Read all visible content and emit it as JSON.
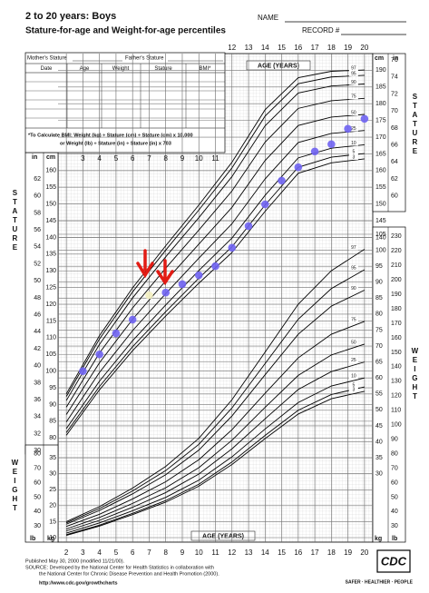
{
  "header": {
    "title": "2 to 20 years: Boys",
    "subtitle": "Stature-for-age and Weight-for-age percentiles",
    "name_label": "NAME",
    "record_label": "RECORD #"
  },
  "record_table": {
    "mother": "Mother's Stature",
    "father": "Father's Stature",
    "columns": [
      "Date",
      "Age",
      "Weight",
      "Stature",
      "BMI*"
    ],
    "bmi_note1": "*To Calculate BMI: Weight (kg) ÷ Stature (cm) ÷ Stature (cm) x 10,000",
    "bmi_note2": "or Weight (lb) ÷ Stature (in) ÷ Stature (in) x 703"
  },
  "footer": {
    "published": "Published May 30, 2000 (modified 11/21/00).",
    "source": "SOURCE: Developed by the National Center for Health Statistics in collaboration with",
    "source2": "the National Center for Chronic Disease Prevention and Health Promotion (2000).",
    "url": "http://www.cdc.gov/growthcharts",
    "logo": "CDC",
    "tagline": "SAFER · HEALTHIER · PEOPLE"
  },
  "chart_data": {
    "type": "line",
    "x_label": "AGE (YEARS)",
    "stature_label": "STATURE",
    "weight_label": "WEIGHT",
    "unit_cm": "cm",
    "unit_in": "in",
    "unit_kg": "kg",
    "unit_lb": "lb",
    "x": [
      2,
      4,
      6,
      8,
      10,
      12,
      14,
      16,
      18,
      20
    ],
    "xlim": [
      1.5,
      20.5
    ],
    "xticks": [
      2,
      3,
      4,
      5,
      6,
      7,
      8,
      9,
      10,
      11,
      12,
      13,
      14,
      15,
      16,
      17,
      18,
      19,
      20
    ],
    "ylim": [
      76,
      195
    ],
    "yticks": [
      80,
      85,
      90,
      95,
      100,
      105,
      110,
      115,
      120,
      125,
      130,
      135,
      140,
      145,
      150,
      155,
      160
    ],
    "yticks_right": [
      140,
      145,
      150,
      155,
      160,
      165,
      170,
      175,
      180,
      185,
      190
    ],
    "yin_lim": [
      29.92,
      76.77
    ],
    "yin_ticks": [
      30,
      32,
      34,
      36,
      38,
      40,
      42,
      44,
      46,
      48,
      50,
      52,
      54,
      56,
      58,
      60,
      62
    ],
    "yin_ticks_right": [
      60,
      62,
      64,
      66,
      68,
      70,
      72,
      74,
      76
    ],
    "y2lim": [
      10,
      105
    ],
    "y2ticks": [
      10,
      15,
      20,
      25,
      30,
      35
    ],
    "y2ticks_right": [
      30,
      35,
      40,
      45,
      50,
      55,
      60,
      65,
      70,
      75,
      80,
      85,
      90,
      95,
      100,
      105
    ],
    "y2lb_lim": [
      22.05,
      231.49
    ],
    "y2lb_ticks": [
      30,
      40,
      50,
      60,
      70,
      80
    ],
    "y2lb_ticks_right": [
      30,
      40,
      50,
      60,
      70,
      80,
      90,
      100,
      110,
      120,
      130,
      140,
      150,
      160,
      170,
      180,
      190,
      200,
      210,
      220,
      230
    ],
    "grid": true,
    "series": [
      {
        "name": "97",
        "color": "#000000",
        "values": [
          93.2,
          110.6,
          124.9,
          137.5,
          149.7,
          162.5,
          178.2,
          187.8,
          189.7,
          190.1
        ]
      },
      {
        "name": "95",
        "color": "#000000",
        "values": [
          92.4,
          109.6,
          123.7,
          136.2,
          148.2,
          160.8,
          176.3,
          186,
          188,
          188.5
        ]
      },
      {
        "name": "90",
        "color": "#000000",
        "values": [
          91.2,
          108,
          121.9,
          134.2,
          145.9,
          158.2,
          173.4,
          183.2,
          185.3,
          185.9
        ]
      },
      {
        "name": "75",
        "color": "#000000",
        "values": [
          89.2,
          105.4,
          118.9,
          130.8,
          142.2,
          153.9,
          168.5,
          178.6,
          180.9,
          181.6
        ]
      },
      {
        "name": "50",
        "color": "#000000",
        "values": [
          87,
          102.5,
          115.5,
          127,
          138,
          149,
          163,
          173.5,
          176,
          176.8
        ]
      },
      {
        "name": "25",
        "color": "#000000",
        "values": [
          84.8,
          99.6,
          112.1,
          123.2,
          133.8,
          144.1,
          157.5,
          168.4,
          171.1,
          172
        ]
      },
      {
        "name": "10",
        "color": "#000000",
        "values": [
          82.8,
          97,
          109.1,
          119.8,
          130.1,
          139.8,
          152.6,
          163.8,
          166.7,
          167.7
        ]
      },
      {
        "name": "5",
        "color": "#000000",
        "values": [
          81.6,
          95.4,
          107.3,
          117.8,
          127.8,
          137.2,
          149.7,
          161,
          164,
          165.1
        ]
      },
      {
        "name": "3",
        "color": "#000000",
        "values": [
          80.8,
          94.4,
          106.1,
          116.5,
          126.3,
          135.5,
          147.8,
          159.2,
          162.3,
          163.5
        ]
      },
      {
        "name": "97",
        "color": "#000000",
        "axis": "y2",
        "values": [
          15,
          19.7,
          25.5,
          32.3,
          41.1,
          53.2,
          68.1,
          83.1,
          93.6,
          100.3
        ]
      },
      {
        "name": "95",
        "color": "#000000",
        "axis": "y2",
        "values": [
          14.6,
          19.1,
          24.6,
          31,
          39.2,
          50.6,
          64.5,
          78.4,
          88,
          93.9
        ]
      },
      {
        "name": "90",
        "color": "#000000",
        "axis": "y2",
        "values": [
          14.2,
          18.5,
          23.7,
          29.7,
          37.4,
          48.1,
          61,
          73.7,
          82.5,
          87.5
        ]
      },
      {
        "name": "75",
        "color": "#000000",
        "axis": "y2",
        "values": [
          13.5,
          17.3,
          22.1,
          27.5,
          34.4,
          43.8,
          55.2,
          66.3,
          73.7,
          77.7
        ]
      },
      {
        "name": "50",
        "color": "#000000",
        "axis": "y2",
        "values": [
          12.7,
          16.3,
          20.7,
          25.6,
          31.9,
          40.5,
          50.8,
          60.8,
          67.2,
          70.6
        ]
      },
      {
        "name": "25",
        "color": "#000000",
        "axis": "y2",
        "values": [
          12.1,
          15.4,
          19.5,
          24.1,
          29.9,
          37.8,
          47.2,
          56.4,
          62,
          65
        ]
      },
      {
        "name": "10",
        "color": "#000000",
        "axis": "y2",
        "values": [
          11.4,
          14.6,
          18.4,
          22.6,
          28,
          35.3,
          44,
          52.3,
          57.5,
          60
        ]
      },
      {
        "name": "5",
        "color": "#000000",
        "axis": "y2",
        "values": [
          10.9,
          13.9,
          17.6,
          21.6,
          26.7,
          33.7,
          42,
          49.9,
          54.8,
          57.2
        ]
      },
      {
        "name": "3",
        "color": "#000000",
        "axis": "y2",
        "values": [
          10.7,
          13.6,
          17.2,
          21.1,
          26.1,
          32.9,
          41,
          48.7,
          53.5,
          55.8
        ]
      }
    ],
    "measurements": {
      "x": [
        3,
        4,
        5,
        6,
        7,
        8,
        9,
        10,
        11,
        12,
        13,
        14,
        15,
        16,
        17,
        18,
        19,
        20
      ],
      "values": [
        100,
        105,
        111.3,
        115.4,
        122.7,
        123.5,
        126,
        128.7,
        131.4,
        136.9,
        143.4,
        149.9,
        157,
        161,
        165.7,
        167.9,
        172.5,
        175.5
      ],
      "colors": [
        "#6f63f2",
        "#6f63f2",
        "#6f63f2",
        "#6f63f2",
        "#f3f0c0",
        "#6f63f2",
        "#6f63f2",
        "#6f63f2",
        "#6f63f2",
        "#6f63f2",
        "#6f63f2",
        "#6f63f2",
        "#6f63f2",
        "#6f63f2",
        "#6f63f2",
        "#6f63f2",
        "#6f63f2",
        "#6f63f2"
      ]
    }
  }
}
